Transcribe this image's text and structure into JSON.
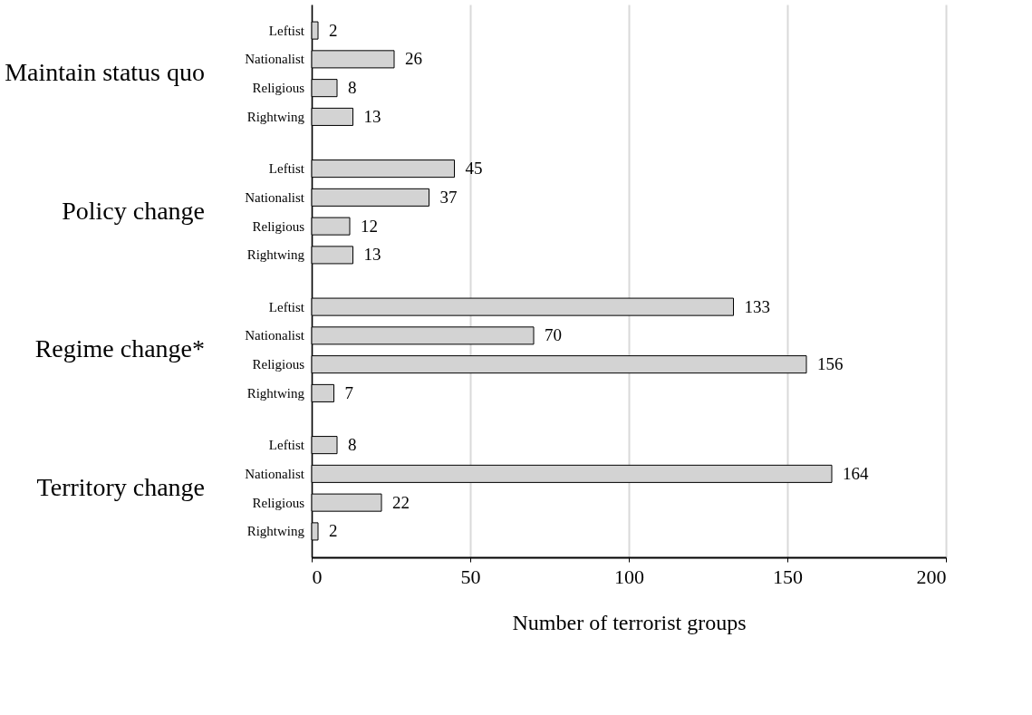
{
  "chart_data": {
    "type": "bar",
    "orientation": "horizontal",
    "categories": [
      "Leftist",
      "Nationalist",
      "Religious",
      "Rightwing",
      "Leftist",
      "Nationalist",
      "Religious",
      "Rightwing",
      "Leftist",
      "Nationalist",
      "Religious",
      "Rightwing",
      "Leftist",
      "Nationalist",
      "Religious",
      "Rightwing"
    ],
    "values": [
      2,
      26,
      8,
      13,
      45,
      37,
      12,
      13,
      133,
      70,
      156,
      7,
      8,
      164,
      22,
      2
    ],
    "color": "#d3d3d3",
    "annotations": [
      "Maintain status quo",
      "Policy change",
      "Regime change*",
      "Territory change"
    ],
    "xlabel": "Number of terrorist groups",
    "xlim": [
      0,
      200
    ],
    "xticks": [
      0,
      50,
      100,
      150,
      200
    ],
    "grid": "x",
    "data_labels": true
  }
}
